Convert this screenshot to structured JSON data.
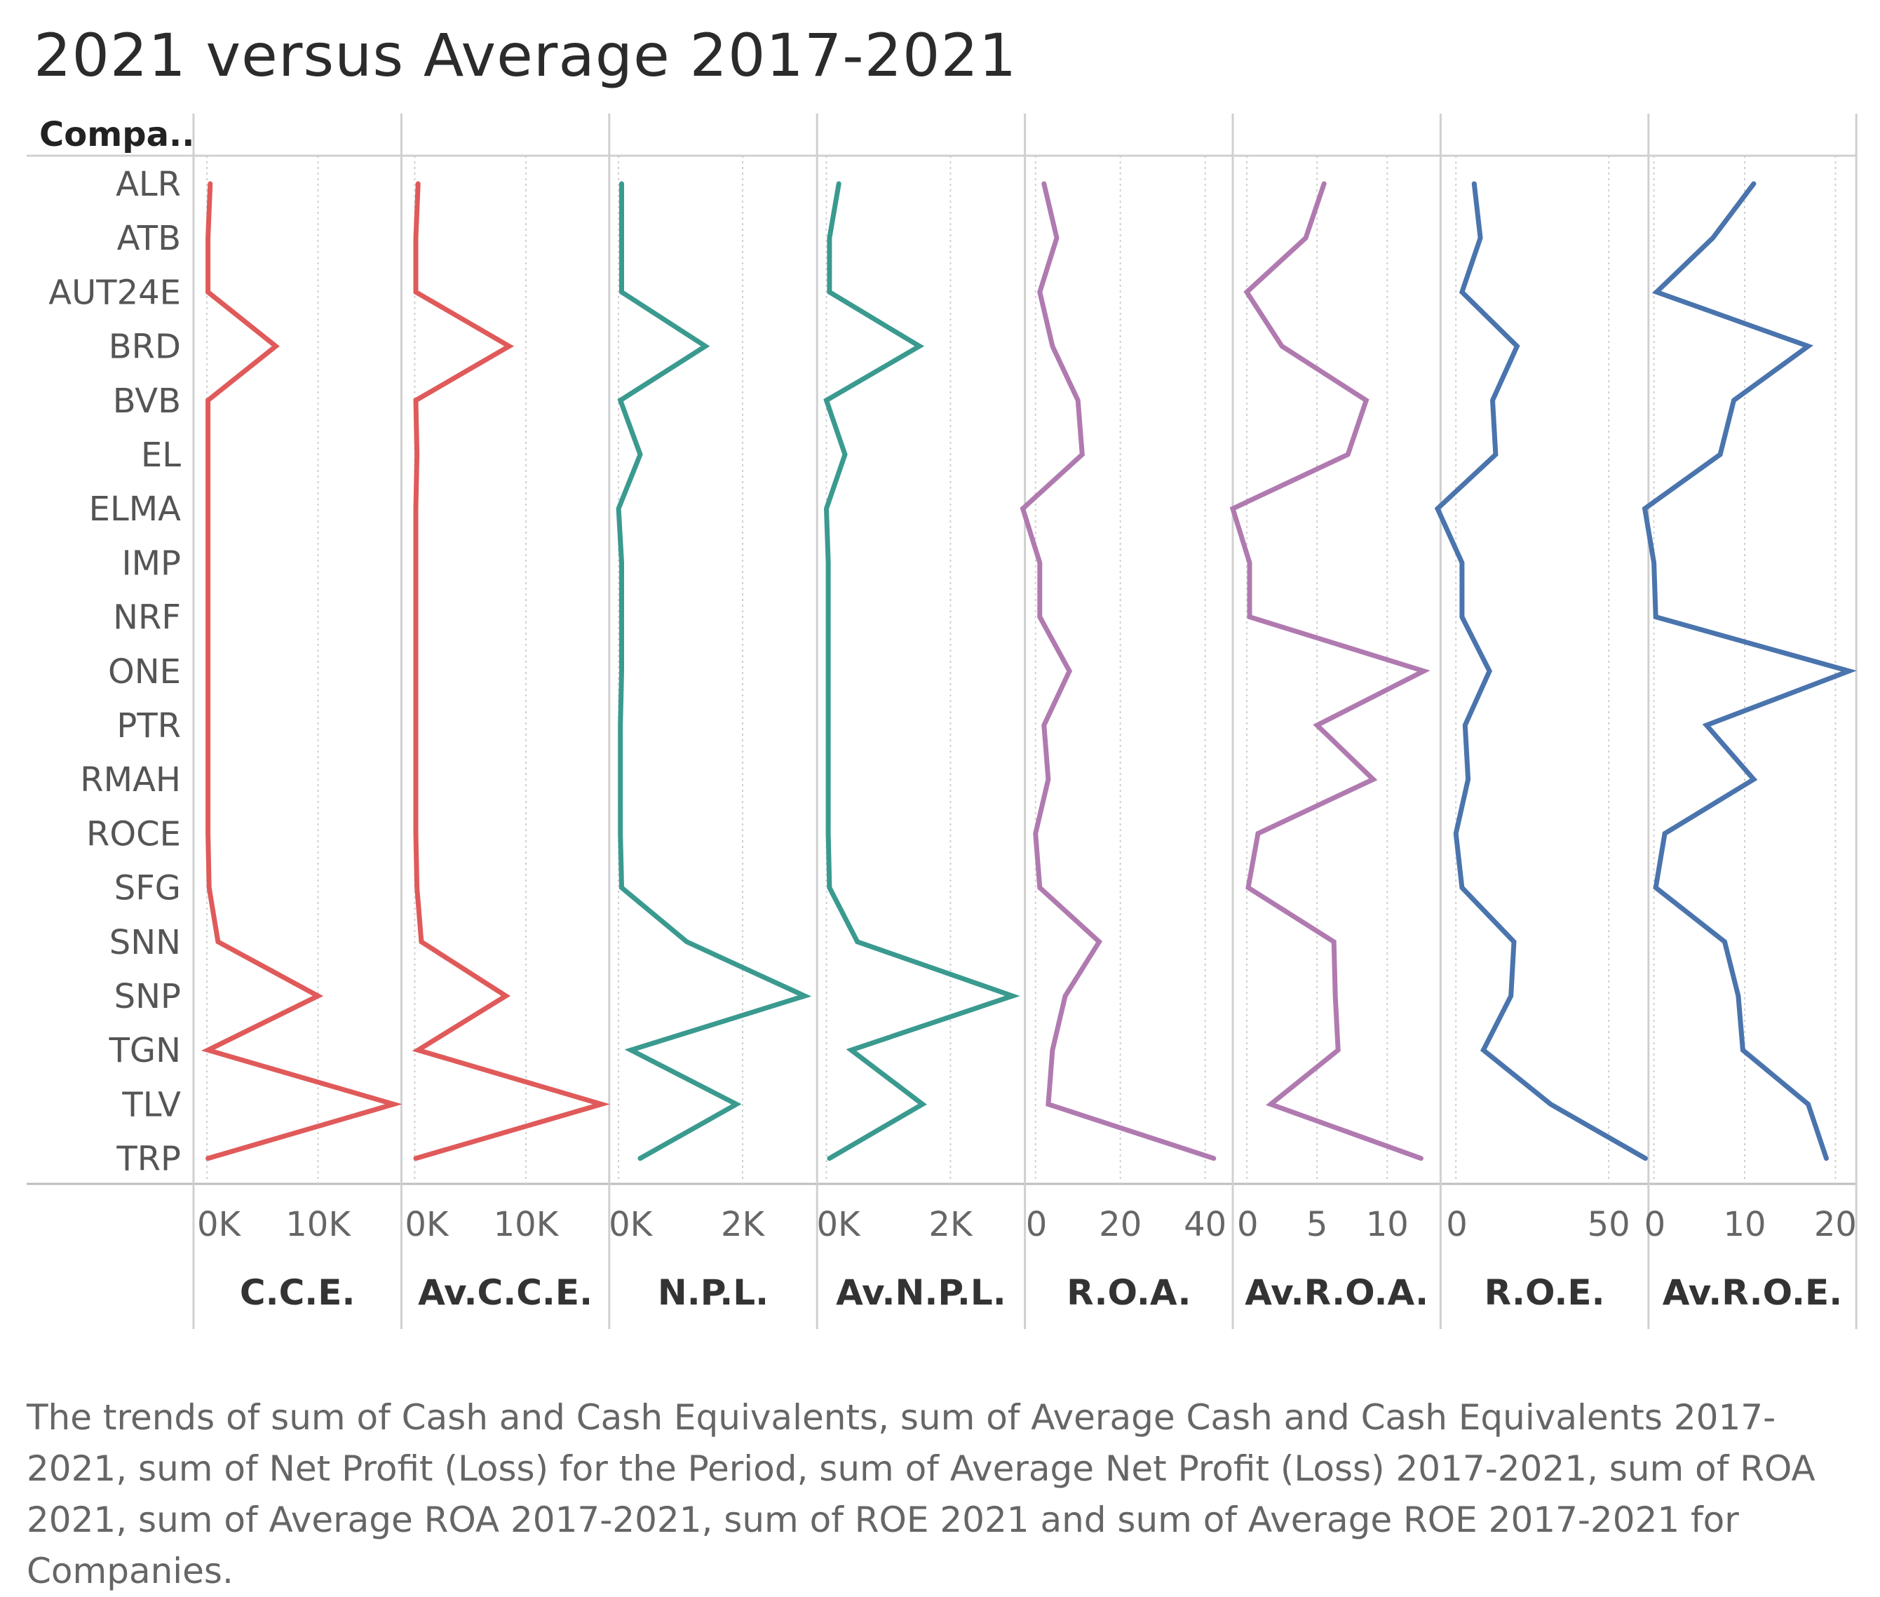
{
  "title": "2021 versus Average 2017-2021",
  "row_header": "Compa..",
  "caption": "The trends of sum of Cash and Cash Equivalents, sum of Average Cash and Cash Equivalents 2017-2021, sum of Net Profit (Loss) for the Period, sum of Average Net Profit (Loss) 2017-2021, sum of ROA 2021, sum of Average ROA 2017-2021, sum of ROE 2021 and sum of Average ROE 2017-2021 for Companies.",
  "chart_data": {
    "type": "line",
    "orientation": "vertical-categories",
    "categories": [
      "ALR",
      "ATB",
      "AUT24E",
      "BRD",
      "BVB",
      "EL",
      "ELMA",
      "IMP",
      "NRF",
      "ONE",
      "PTR",
      "RMAH",
      "ROCE",
      "SFG",
      "SNN",
      "SNP",
      "TGN",
      "TLV",
      "TRP"
    ],
    "grid": true,
    "series": [
      {
        "name": "C.C.E.",
        "color": "#e05a5a",
        "xlim": [
          -1200,
          17500
        ],
        "ticks": [
          0,
          10000
        ],
        "tick_labels": [
          "0K",
          "10K"
        ],
        "values": [
          300,
          100,
          100,
          6200,
          100,
          100,
          100,
          100,
          100,
          100,
          100,
          100,
          100,
          200,
          1000,
          10000,
          100,
          16800,
          100
        ]
      },
      {
        "name": "Av.C.C.E.",
        "color": "#e05a5a",
        "xlim": [
          -1200,
          17500
        ],
        "ticks": [
          0,
          10000
        ],
        "tick_labels": [
          "0K",
          "10K"
        ],
        "values": [
          300,
          100,
          100,
          8500,
          100,
          200,
          100,
          100,
          100,
          100,
          100,
          100,
          100,
          200,
          600,
          8200,
          300,
          16800,
          100
        ]
      },
      {
        "name": "N.P.L.",
        "color": "#3a9a8f",
        "xlim": [
          -150,
          3200
        ],
        "ticks": [
          0,
          2000
        ],
        "tick_labels": [
          "0K",
          "2K"
        ],
        "values": [
          50,
          50,
          50,
          1400,
          30,
          350,
          0,
          50,
          50,
          50,
          30,
          30,
          30,
          50,
          1100,
          3000,
          200,
          1900,
          350
        ]
      },
      {
        "name": "Av.N.P.L.",
        "color": "#3a9a8f",
        "xlim": [
          -150,
          3200
        ],
        "ticks": [
          0,
          2000
        ],
        "tick_labels": [
          "0K",
          "2K"
        ],
        "values": [
          200,
          50,
          50,
          1500,
          0,
          300,
          0,
          30,
          30,
          30,
          30,
          30,
          30,
          50,
          500,
          3000,
          400,
          1550,
          50
        ]
      },
      {
        "name": "R.O.A.",
        "color": "#b07ab0",
        "xlim": [
          -2.5,
          46.5
        ],
        "ticks": [
          0,
          20,
          40
        ],
        "tick_labels": [
          "0",
          "20",
          "40"
        ],
        "values": [
          2,
          5,
          1,
          4,
          10,
          11,
          -3,
          1,
          1,
          8,
          2,
          3,
          0,
          1,
          15,
          7,
          4,
          3,
          42
        ]
      },
      {
        "name": "Av.R.O.A.",
        "color": "#b07ab0",
        "xlim": [
          -1,
          13.8
        ],
        "ticks": [
          0,
          5,
          10
        ],
        "tick_labels": [
          "0",
          "5",
          "10"
        ],
        "values": [
          5.5,
          4.2,
          0,
          2.5,
          8.5,
          7.2,
          -1,
          0.2,
          0.2,
          12.6,
          5,
          9,
          0.8,
          0.1,
          6.2,
          6.3,
          6.5,
          1.7,
          12.4
        ]
      },
      {
        "name": "R.O.E.",
        "color": "#4a74ad",
        "xlim": [
          -5,
          63
        ],
        "ticks": [
          0,
          50
        ],
        "tick_labels": [
          "0",
          "50"
        ],
        "values": [
          6,
          8,
          2,
          20,
          12,
          13,
          -6,
          2,
          2,
          11,
          3,
          4,
          0,
          2,
          19,
          18,
          9,
          31,
          62
        ]
      },
      {
        "name": "Av.R.O.E.",
        "color": "#4a74ad",
        "xlim": [
          -0.6,
          22.3
        ],
        "ticks": [
          0,
          10,
          20
        ],
        "tick_labels": [
          "0",
          "10",
          "20"
        ],
        "values": [
          11,
          6.5,
          0.3,
          17,
          8.8,
          7.3,
          -1,
          0,
          0.2,
          21.5,
          5.8,
          11,
          1.2,
          0.2,
          7.8,
          9.3,
          9.8,
          17,
          19
        ]
      }
    ]
  }
}
